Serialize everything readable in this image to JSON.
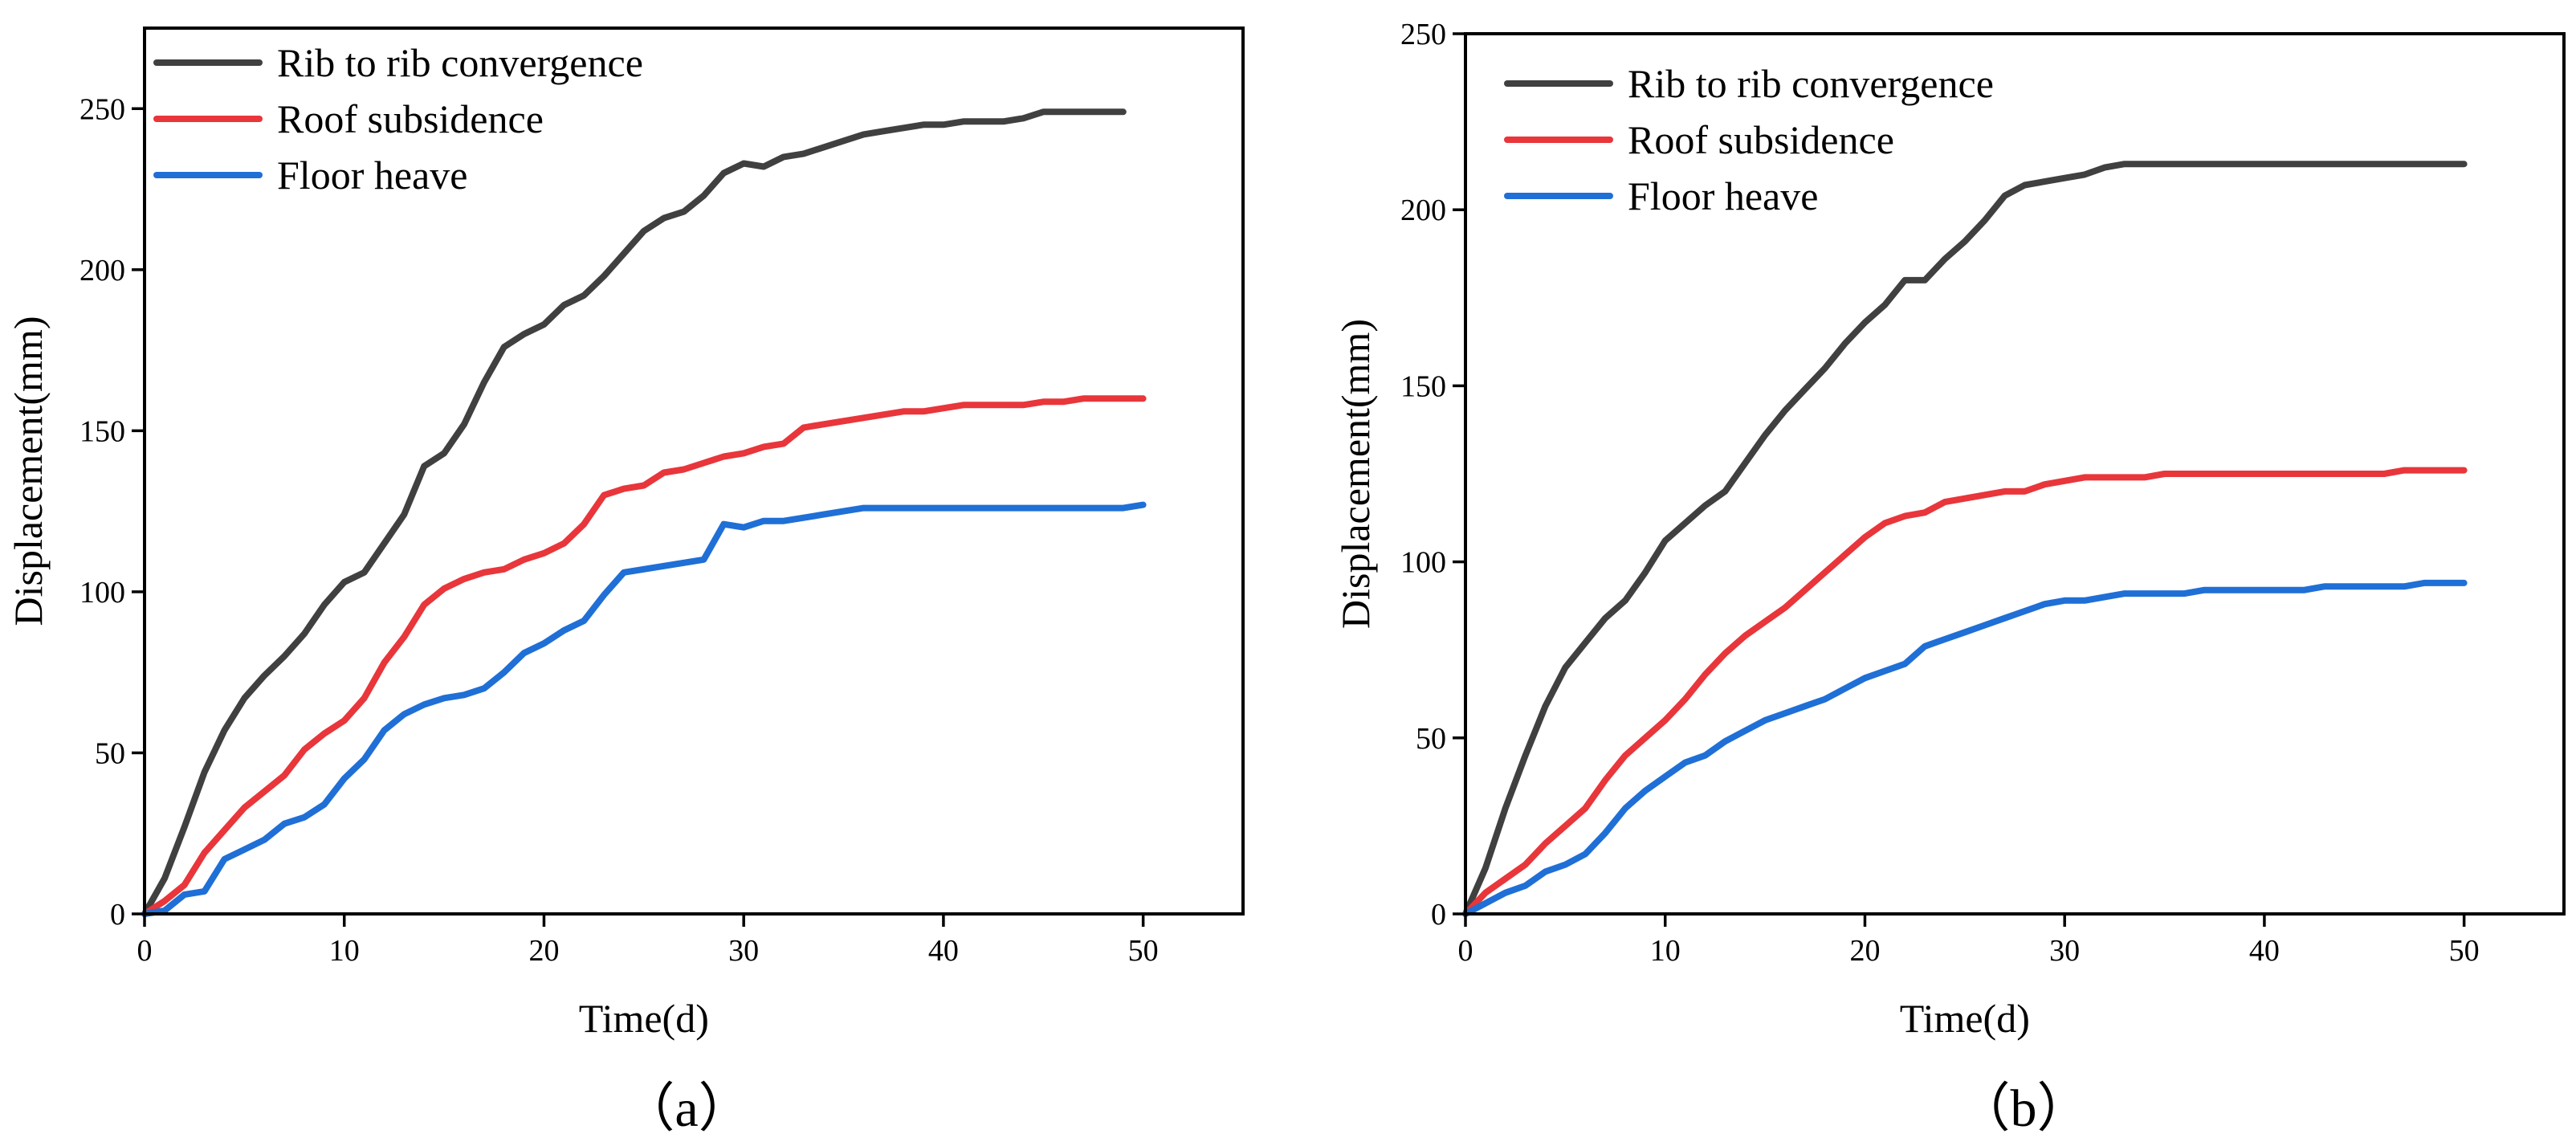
{
  "colors": {
    "rib": "#404040",
    "roof": "#e8363b",
    "floor": "#1f6fd6"
  },
  "chart_data": [
    {
      "type": "line",
      "caption": "（a）",
      "xlabel": "Time(d)",
      "ylabel": "Displacement(mm)",
      "xlim": [
        0,
        55
      ],
      "ylim": [
        0,
        275
      ],
      "xticks": [
        0,
        10,
        20,
        30,
        40,
        50
      ],
      "yticks": [
        0,
        50,
        100,
        150,
        200,
        250
      ],
      "legend_position": "top-left",
      "series": [
        {
          "name": "Rib to rib convergence",
          "color_key": "rib",
          "x": [
            0,
            1,
            2,
            3,
            4,
            5,
            6,
            7,
            8,
            9,
            10,
            11,
            12,
            13,
            14,
            15,
            16,
            17,
            18,
            19,
            20,
            21,
            22,
            23,
            24,
            25,
            26,
            27,
            28,
            29,
            30,
            31,
            32,
            33,
            34,
            35,
            36,
            37,
            38,
            39,
            40,
            41,
            42,
            43,
            44,
            45,
            46,
            47,
            48,
            49
          ],
          "y": [
            0,
            11,
            27,
            44,
            57,
            67,
            74,
            80,
            87,
            96,
            103,
            106,
            115,
            124,
            139,
            143,
            152,
            165,
            176,
            180,
            183,
            189,
            192,
            198,
            205,
            212,
            216,
            218,
            223,
            230,
            233,
            232,
            235,
            236,
            238,
            240,
            242,
            243,
            244,
            245,
            245,
            246,
            246,
            246,
            247,
            249,
            249,
            249,
            249,
            249
          ]
        },
        {
          "name": "Roof subsidence",
          "color_key": "roof",
          "x": [
            0,
            1,
            2,
            3,
            4,
            5,
            6,
            7,
            8,
            9,
            10,
            11,
            12,
            13,
            14,
            15,
            16,
            17,
            18,
            19,
            20,
            21,
            22,
            23,
            24,
            25,
            26,
            27,
            28,
            29,
            30,
            31,
            32,
            33,
            34,
            35,
            36,
            37,
            38,
            39,
            40,
            41,
            42,
            43,
            44,
            45,
            46,
            47,
            48,
            49,
            50
          ],
          "y": [
            0,
            4,
            9,
            19,
            26,
            33,
            38,
            43,
            51,
            56,
            60,
            67,
            78,
            86,
            96,
            101,
            104,
            106,
            107,
            110,
            112,
            115,
            121,
            130,
            132,
            133,
            137,
            138,
            140,
            142,
            143,
            145,
            146,
            151,
            152,
            153,
            154,
            155,
            156,
            156,
            157,
            158,
            158,
            158,
            158,
            159,
            159,
            160,
            160,
            160,
            160
          ]
        },
        {
          "name": "Floor heave",
          "color_key": "floor",
          "x": [
            0,
            1,
            2,
            3,
            4,
            5,
            6,
            7,
            8,
            9,
            10,
            11,
            12,
            13,
            14,
            15,
            16,
            17,
            18,
            19,
            20,
            21,
            22,
            23,
            24,
            25,
            26,
            27,
            28,
            29,
            30,
            31,
            32,
            33,
            34,
            35,
            36,
            37,
            38,
            39,
            40,
            41,
            42,
            43,
            44,
            45,
            46,
            47,
            48,
            49,
            50
          ],
          "y": [
            0,
            1,
            6,
            7,
            17,
            20,
            23,
            28,
            30,
            34,
            42,
            48,
            57,
            62,
            65,
            67,
            68,
            70,
            75,
            81,
            84,
            88,
            91,
            99,
            106,
            107,
            108,
            109,
            110,
            121,
            120,
            122,
            122,
            123,
            124,
            125,
            126,
            126,
            126,
            126,
            126,
            126,
            126,
            126,
            126,
            126,
            126,
            126,
            126,
            126,
            127
          ]
        }
      ]
    },
    {
      "type": "line",
      "caption": "（b）",
      "xlabel": "Time(d)",
      "ylabel": "Displacement(mm)",
      "xlim": [
        0,
        55
      ],
      "ylim": [
        0,
        250
      ],
      "xticks": [
        0,
        10,
        20,
        30,
        40,
        50
      ],
      "yticks": [
        0,
        50,
        100,
        150,
        200,
        250
      ],
      "legend_position": "top-left",
      "series": [
        {
          "name": "Rib to rib convergence",
          "color_key": "rib",
          "x": [
            0,
            1,
            2,
            3,
            4,
            5,
            6,
            7,
            8,
            9,
            10,
            11,
            12,
            13,
            14,
            15,
            16,
            17,
            18,
            19,
            20,
            21,
            22,
            23,
            24,
            25,
            26,
            27,
            28,
            29,
            30,
            31,
            32,
            33,
            34,
            35,
            36,
            37,
            38,
            39,
            40,
            41,
            42,
            43,
            44,
            45,
            46,
            47,
            48,
            49,
            50
          ],
          "y": [
            0,
            13,
            30,
            45,
            59,
            70,
            77,
            84,
            89,
            97,
            106,
            111,
            116,
            120,
            128,
            136,
            143,
            149,
            155,
            162,
            168,
            173,
            180,
            180,
            186,
            191,
            197,
            204,
            207,
            208,
            209,
            210,
            212,
            213,
            213,
            213,
            213,
            213,
            213,
            213,
            213,
            213,
            213,
            213,
            213,
            213,
            213,
            213,
            213,
            213,
            213
          ]
        },
        {
          "name": "Roof subsidence",
          "color_key": "roof",
          "x": [
            0,
            1,
            2,
            3,
            4,
            5,
            6,
            7,
            8,
            9,
            10,
            11,
            12,
            13,
            14,
            15,
            16,
            17,
            18,
            19,
            20,
            21,
            22,
            23,
            24,
            25,
            26,
            27,
            28,
            29,
            30,
            31,
            32,
            33,
            34,
            35,
            36,
            37,
            38,
            39,
            40,
            41,
            42,
            43,
            44,
            45,
            46,
            47,
            48,
            49,
            50
          ],
          "y": [
            0,
            6,
            10,
            14,
            20,
            25,
            30,
            38,
            45,
            50,
            55,
            61,
            68,
            74,
            79,
            83,
            87,
            92,
            97,
            102,
            107,
            111,
            113,
            114,
            117,
            118,
            119,
            120,
            120,
            122,
            123,
            124,
            124,
            124,
            124,
            125,
            125,
            125,
            125,
            125,
            125,
            125,
            125,
            125,
            125,
            125,
            125,
            126,
            126,
            126,
            126
          ]
        },
        {
          "name": "Floor heave",
          "color_key": "floor",
          "x": [
            0,
            1,
            2,
            3,
            4,
            5,
            6,
            7,
            8,
            9,
            10,
            11,
            12,
            13,
            14,
            15,
            16,
            17,
            18,
            19,
            20,
            21,
            22,
            23,
            24,
            25,
            26,
            27,
            28,
            29,
            30,
            31,
            32,
            33,
            34,
            35,
            36,
            37,
            38,
            39,
            40,
            41,
            42,
            43,
            44,
            45,
            46,
            47,
            48,
            49,
            50
          ],
          "y": [
            0,
            3,
            6,
            8,
            12,
            14,
            17,
            23,
            30,
            35,
            39,
            43,
            45,
            49,
            52,
            55,
            57,
            59,
            61,
            64,
            67,
            69,
            71,
            76,
            78,
            80,
            82,
            84,
            86,
            88,
            89,
            89,
            90,
            91,
            91,
            91,
            91,
            92,
            92,
            92,
            92,
            92,
            92,
            93,
            93,
            93,
            93,
            93,
            94,
            94,
            94
          ]
        }
      ]
    }
  ]
}
